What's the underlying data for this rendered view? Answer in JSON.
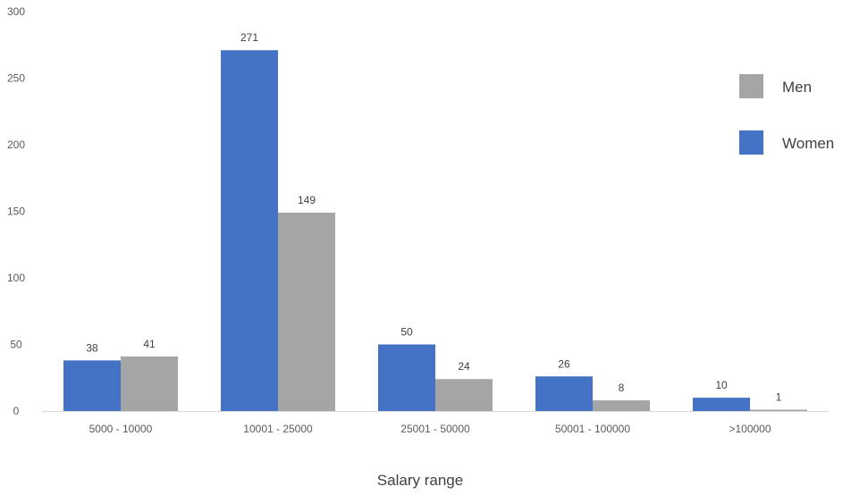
{
  "chart_data": {
    "type": "bar",
    "categories": [
      "5000 - 10000",
      "10001 - 25000",
      "25001 - 50000",
      "50001 - 100000",
      ">100000"
    ],
    "series": [
      {
        "name": "Women",
        "values": [
          38,
          271,
          50,
          26,
          10
        ],
        "color": "#4472C4"
      },
      {
        "name": "Men",
        "values": [
          41,
          149,
          24,
          8,
          1
        ],
        "color": "#A5A5A5"
      }
    ],
    "xlabel": "Salary range",
    "ylabel": "",
    "ylim": [
      0,
      300
    ],
    "yticks": [
      0,
      50,
      100,
      150,
      200,
      250,
      300
    ],
    "legend_order": [
      "Men",
      "Women"
    ],
    "legend_position": "right",
    "grid": false
  }
}
